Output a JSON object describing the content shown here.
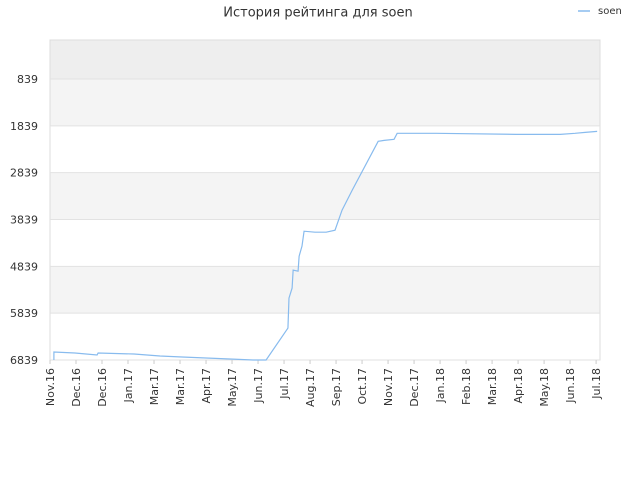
{
  "chart_data": {
    "type": "line",
    "title": "История рейтинга для soen",
    "x": [
      0.15,
      0.15,
      0.96,
      1.81,
      1.85,
      3.23,
      4.23,
      5.08,
      6.0,
      6.92,
      7.81,
      8.31,
      9.15,
      9.19,
      9.31,
      9.35,
      9.54,
      9.58,
      9.69,
      9.77,
      10.19,
      10.62,
      10.96,
      11.23,
      11.62,
      12.62,
      12.85,
      13.23,
      13.35,
      14.85,
      17.92,
      19.62,
      20.19,
      20.58,
      21.04
    ],
    "series": [
      {
        "name": "soen",
        "color": "#88bbee",
        "values": [
          6839,
          6668,
          6690,
          6732,
          6690,
          6711,
          6754,
          6775,
          6796,
          6818,
          6839,
          6839,
          6157,
          5517,
          5304,
          4920,
          4942,
          4622,
          4408,
          4089,
          4110,
          4110,
          4067,
          3641,
          3215,
          2170,
          2149,
          2127,
          1999,
          1999,
          2021,
          2021,
          1999,
          1978,
          1957
        ]
      }
    ],
    "xlim": [
      0,
      21.15
    ],
    "xticks": [
      {
        "value": 0,
        "label": "Nov.16"
      },
      {
        "value": 1,
        "label": "Dec.16"
      },
      {
        "value": 2,
        "label": "Dec.16"
      },
      {
        "value": 3,
        "label": "Jan.17"
      },
      {
        "value": 4,
        "label": "Mar.17"
      },
      {
        "value": 5,
        "label": "Mar.17"
      },
      {
        "value": 6,
        "label": "Apr.17"
      },
      {
        "value": 7,
        "label": "May.17"
      },
      {
        "value": 8,
        "label": "Jun.17"
      },
      {
        "value": 9,
        "label": "Jul.17"
      },
      {
        "value": 10,
        "label": "Aug.17"
      },
      {
        "value": 11,
        "label": "Sep.17"
      },
      {
        "value": 12,
        "label": "Oct.17"
      },
      {
        "value": 13,
        "label": "Nov.17"
      },
      {
        "value": 14,
        "label": "Dec.17"
      },
      {
        "value": 15,
        "label": "Jan.18"
      },
      {
        "value": 16,
        "label": "Feb.18"
      },
      {
        "value": 17,
        "label": "Mar.18"
      },
      {
        "value": 18,
        "label": "Apr.18"
      },
      {
        "value": 19,
        "label": "May.18"
      },
      {
        "value": 20,
        "label": "Jun.18"
      },
      {
        "value": 21,
        "label": "Jul.18"
      }
    ],
    "ylim": [
      6,
      6839
    ],
    "y_reversed": true,
    "yticks": [
      839,
      1839,
      2839,
      3839,
      4839,
      5839,
      6839
    ],
    "grid": true,
    "legend": "top-right"
  }
}
